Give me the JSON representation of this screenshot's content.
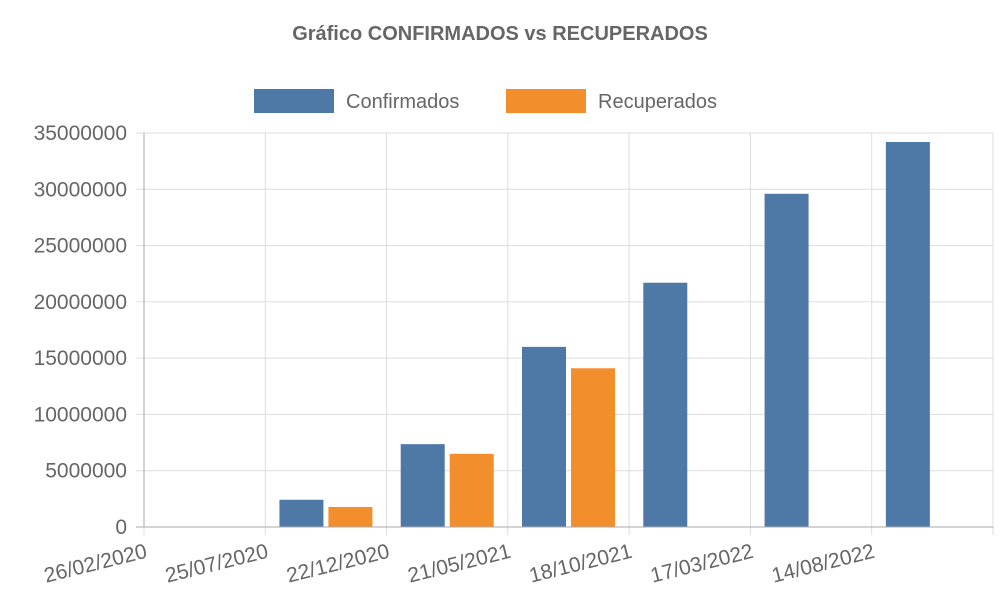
{
  "chart_data": {
    "type": "bar",
    "title": "Gráfico CONFIRMADOS vs RECUPERADOS",
    "categories": [
      "26/02/2020",
      "25/07/2020",
      "22/12/2020",
      "21/05/2021",
      "18/10/2021",
      "17/03/2022",
      "14/08/2022"
    ],
    "series": [
      {
        "name": "Confirmados",
        "color": "#4e79a7",
        "values": [
          1,
          2420000,
          7360000,
          16000000,
          21700000,
          29600000,
          34200000
        ]
      },
      {
        "name": "Recuperados",
        "color": "#f28e2b",
        "values": [
          0,
          1780000,
          6500000,
          14100000,
          0,
          0,
          0
        ]
      }
    ],
    "ylim": [
      0,
      35000000
    ],
    "yticks": [
      0,
      5000000,
      10000000,
      15000000,
      20000000,
      25000000,
      30000000,
      35000000
    ],
    "ytick_labels": [
      "0",
      "5000000",
      "10000000",
      "15000000",
      "20000000",
      "25000000",
      "30000000",
      "35000000"
    ],
    "xlabel": "",
    "ylabel": "",
    "grid": true,
    "legend_position": "top-center"
  }
}
